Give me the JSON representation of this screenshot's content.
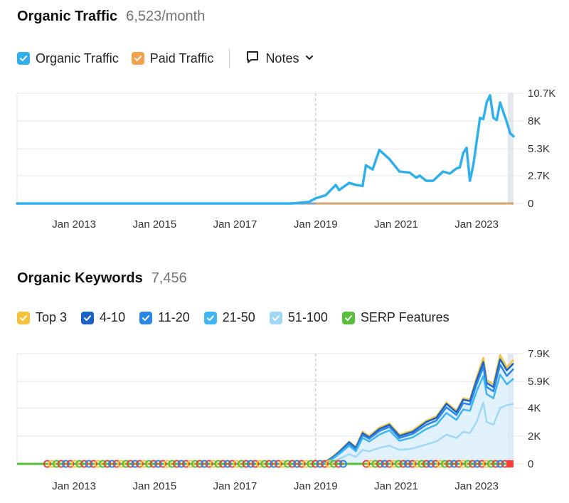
{
  "traffic": {
    "title": "Organic Traffic",
    "metric": "6,523/month",
    "legend": [
      {
        "label": "Organic Traffic",
        "color": "#2fb0ea",
        "checked": true
      },
      {
        "label": "Paid Traffic",
        "color": "#f5a04a",
        "checked": true
      }
    ],
    "notes_label": "Notes",
    "notes_icon": "comment-icon",
    "dropdown_icon": "chevron-down-icon"
  },
  "keywords": {
    "title": "Organic Keywords",
    "metric": "7,456",
    "legend": [
      {
        "label": "Top 3",
        "color": "#f5c33b",
        "checked": true
      },
      {
        "label": "4-10",
        "color": "#1a63c4",
        "checked": true
      },
      {
        "label": "11-20",
        "color": "#2b86e6",
        "checked": true
      },
      {
        "label": "21-50",
        "color": "#3fb5f2",
        "checked": true
      },
      {
        "label": "51-100",
        "color": "#9fd7f7",
        "checked": true
      },
      {
        "label": "SERP Features",
        "color": "#56bf3b",
        "checked": true
      }
    ]
  },
  "chart_data": [
    {
      "type": "line",
      "x_ticks": [
        "Jan 2013",
        "Jan 2015",
        "Jan 2017",
        "Jan 2019",
        "Jan 2021",
        "Jan 2023"
      ],
      "y_ticks": [
        "0",
        "2.7K",
        "5.3K",
        "8K",
        "10.7K"
      ],
      "ylim": [
        0,
        10700
      ],
      "xlim": [
        "2011-08",
        "2023-12"
      ],
      "annotation_line_x": "2019-01",
      "grid": true,
      "legend_position": "top-left",
      "series": [
        {
          "name": "Organic Traffic",
          "color": "#2fb0ea",
          "x": [
            "2011-08",
            "2018-06",
            "2018-11",
            "2019-01",
            "2019-04",
            "2019-07",
            "2019-08",
            "2019-11",
            "2020-01",
            "2020-03",
            "2020-04",
            "2020-06",
            "2020-08",
            "2020-10",
            "2020-11",
            "2021-02",
            "2021-05",
            "2021-07",
            "2021-08",
            "2021-10",
            "2021-12",
            "2022-03",
            "2022-05",
            "2022-07",
            "2022-08",
            "2022-09",
            "2022-10",
            "2022-11",
            "2022-12",
            "2023-02",
            "2023-03",
            "2023-04",
            "2023-05",
            "2023-06",
            "2023-07",
            "2023-08",
            "2023-10",
            "2023-11",
            "2023-12"
          ],
          "y": [
            0,
            0,
            150,
            500,
            800,
            1800,
            1300,
            2000,
            1800,
            1700,
            3700,
            3300,
            5200,
            4600,
            4300,
            3100,
            3000,
            2500,
            2700,
            2200,
            2200,
            3100,
            2900,
            3400,
            3500,
            4900,
            5400,
            2200,
            3700,
            8300,
            8200,
            9800,
            10500,
            8300,
            8100,
            9800,
            7900,
            6800,
            6523
          ]
        },
        {
          "name": "Paid Traffic",
          "color": "#f5a04a",
          "x": [
            "2019-01",
            "2023-12"
          ],
          "y": [
            0,
            0
          ]
        }
      ]
    },
    {
      "type": "area",
      "x_ticks": [
        "Jan 2013",
        "Jan 2015",
        "Jan 2017",
        "Jan 2019",
        "Jan 2021",
        "Jan 2023"
      ],
      "y_ticks": [
        "0",
        "2K",
        "4K",
        "5.9K",
        "7.9K"
      ],
      "ylim": [
        0,
        7900
      ],
      "xlim": [
        "2011-08",
        "2023-12"
      ],
      "annotation_line_x": "2019-01",
      "grid": true,
      "legend_position": "top-left",
      "x": [
        "2019-03",
        "2019-06",
        "2019-08",
        "2019-11",
        "2020-01",
        "2020-03",
        "2020-05",
        "2020-08",
        "2020-11",
        "2021-02",
        "2021-06",
        "2021-10",
        "2022-01",
        "2022-04",
        "2022-07",
        "2022-09",
        "2022-11",
        "2023-01",
        "2023-03",
        "2023-04",
        "2023-06",
        "2023-08",
        "2023-10",
        "2023-12"
      ],
      "series": [
        {
          "name": "Top 3",
          "color": "#f5c33b",
          "values": [
            0,
            500,
            900,
            1600,
            1200,
            2300,
            2000,
            2600,
            2900,
            2100,
            2400,
            3100,
            3400,
            4400,
            3800,
            4700,
            4600,
            6200,
            7600,
            6000,
            5700,
            7800,
            6900,
            7456
          ]
        },
        {
          "name": "4-10",
          "color": "#1a63c4",
          "values": [
            0,
            450,
            850,
            1550,
            1150,
            2200,
            1900,
            2500,
            2800,
            2000,
            2300,
            3000,
            3300,
            4300,
            3700,
            4600,
            4500,
            6000,
            7300,
            5800,
            5500,
            7500,
            6700,
            7200
          ]
        },
        {
          "name": "11-20",
          "color": "#2b86e6",
          "values": [
            0,
            400,
            800,
            1450,
            1050,
            2050,
            1800,
            2350,
            2650,
            1850,
            2150,
            2800,
            3100,
            4050,
            3500,
            4350,
            4250,
            5700,
            6950,
            5500,
            5200,
            7100,
            6300,
            6800
          ]
        },
        {
          "name": "21-50",
          "color": "#3fb5f2",
          "values": [
            0,
            350,
            700,
            1300,
            900,
            1850,
            1600,
            2100,
            2400,
            1650,
            1900,
            2500,
            2800,
            3650,
            3150,
            3900,
            3800,
            5200,
            6300,
            5000,
            4700,
            6400,
            5700,
            6100
          ]
        },
        {
          "name": "51-100",
          "color": "#9fd7f7",
          "values": [
            0,
            150,
            350,
            700,
            500,
            1000,
            900,
            1150,
            1300,
            1000,
            1100,
            1400,
            1600,
            2100,
            1850,
            2300,
            2200,
            3000,
            4400,
            3000,
            2800,
            4000,
            4200,
            4300
          ]
        },
        {
          "name": "SERP Features",
          "color": "#56bf3b",
          "values": [
            0,
            0,
            0,
            0,
            0,
            0,
            0,
            0,
            0,
            0,
            0,
            0,
            0,
            0,
            0,
            0,
            0,
            0,
            0,
            0,
            0,
            0,
            0,
            0
          ]
        }
      ]
    }
  ]
}
